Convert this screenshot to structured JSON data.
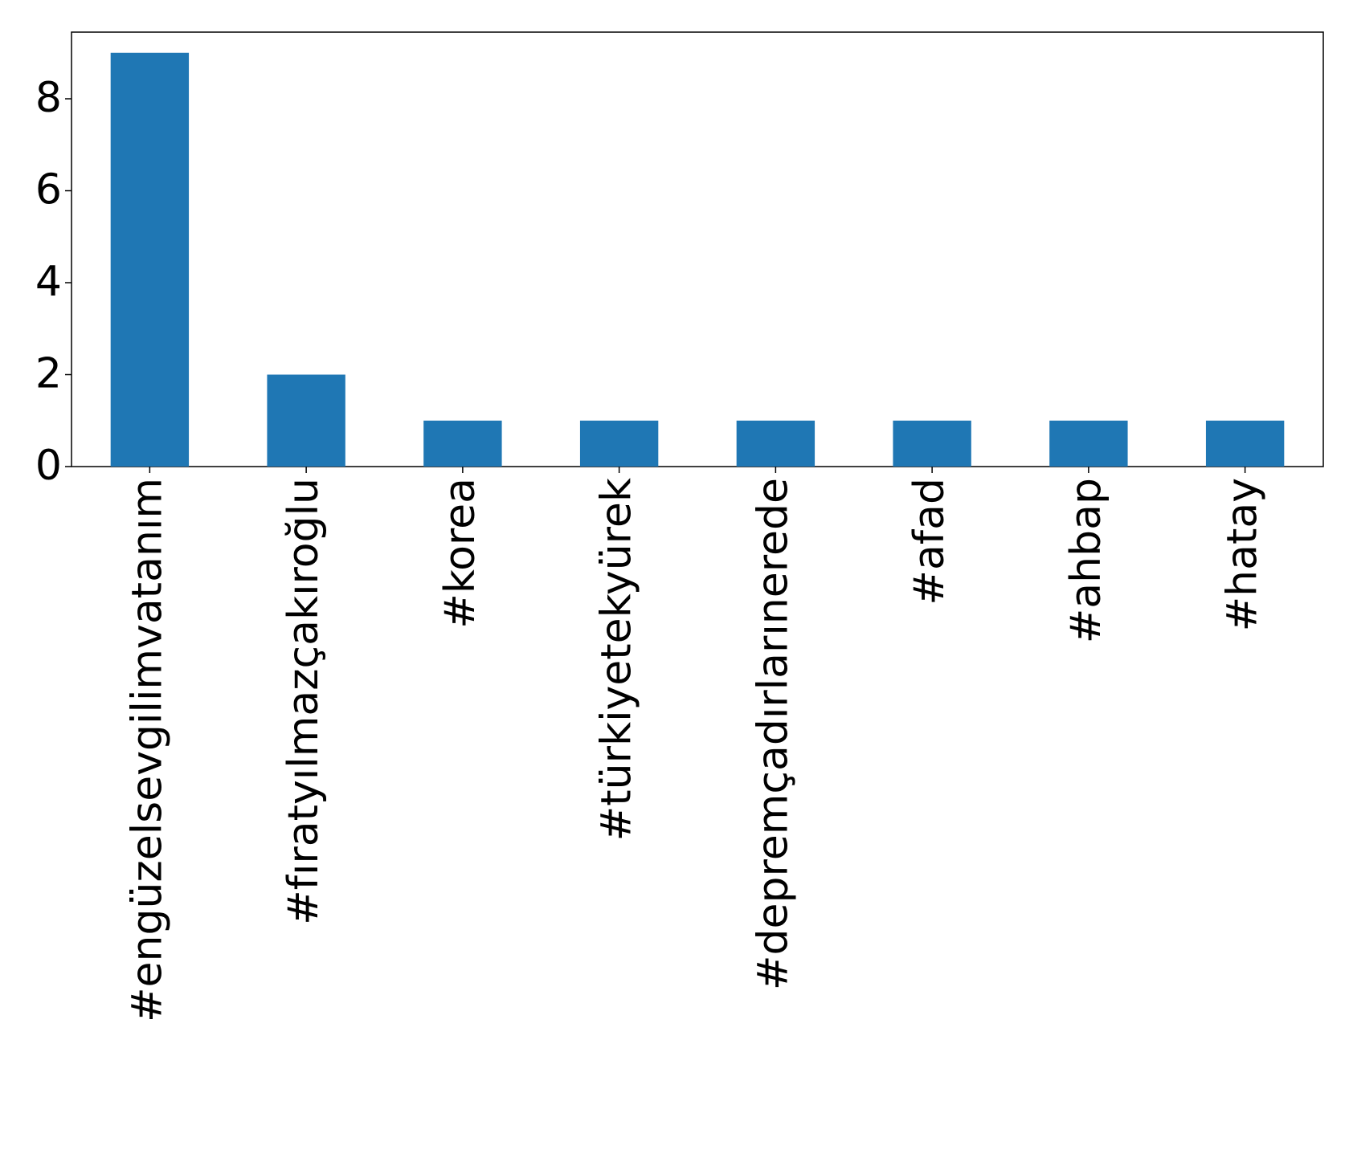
{
  "chart_data": {
    "type": "bar",
    "categories": [
      "#engüzelsevgilimvatanım",
      "#fıratyılmazçakıroğlu",
      "#korea",
      "#türkiyetekyürek",
      "#depremçadırlarınerede",
      "#afad",
      "#ahbap",
      "#hatay"
    ],
    "values": [
      9,
      2,
      1,
      1,
      1,
      1,
      1,
      1
    ],
    "color": "#1f77b4",
    "ylim": [
      0,
      9.45
    ],
    "yticks": [
      0,
      2,
      4,
      6,
      8
    ],
    "grid": false
  }
}
